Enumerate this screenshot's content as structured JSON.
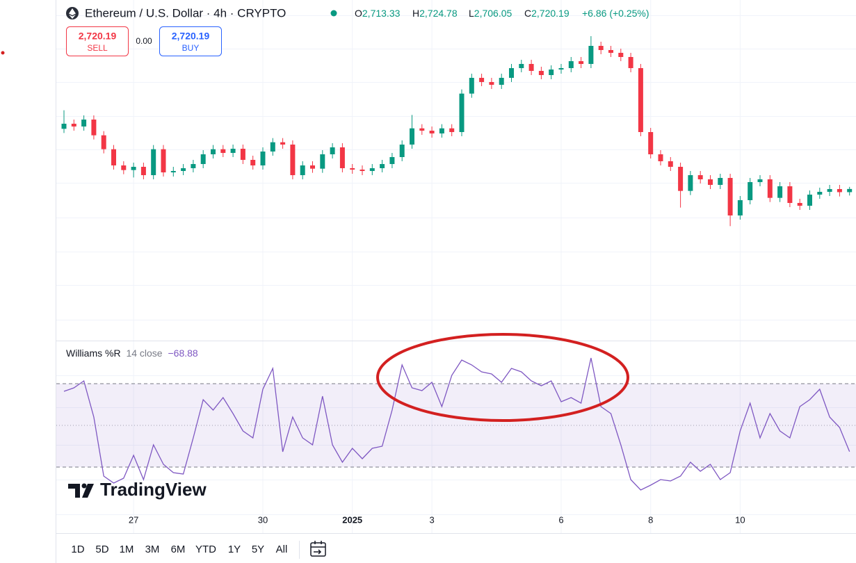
{
  "header": {
    "title": "Ethereum / U.S. Dollar · 4h · CRYPTO",
    "ohlc": [
      {
        "label": "O",
        "value": "2,713.33"
      },
      {
        "label": "H",
        "value": "2,724.78"
      },
      {
        "label": "L",
        "value": "2,706.05"
      },
      {
        "label": "C",
        "value": "2,720.19"
      }
    ],
    "change": "+6.86 (+0.25%)"
  },
  "trade": {
    "sell": {
      "price": "2,720.19",
      "label": "SELL"
    },
    "spread": "0.00",
    "buy": {
      "price": "2,720.19",
      "label": "BUY"
    }
  },
  "chart_data": [
    {
      "type": "candlestick",
      "up_color": "#089981",
      "down_color": "#f23645",
      "ylim": [
        2393,
        3128
      ],
      "categories": [
        null,
        null,
        null,
        null,
        null,
        null,
        null,
        "27",
        null,
        null,
        null,
        null,
        null,
        null,
        null,
        null,
        null,
        null,
        null,
        null,
        "30",
        null,
        null,
        null,
        null,
        null,
        null,
        null,
        null,
        "2025",
        null,
        null,
        null,
        null,
        null,
        null,
        null,
        "3",
        null,
        null,
        null,
        null,
        null,
        null,
        null,
        null,
        null,
        null,
        null,
        null,
        "6",
        null,
        null,
        null,
        null,
        null,
        null,
        null,
        null,
        "8",
        null,
        null,
        null,
        null,
        null,
        null,
        null,
        null,
        "10",
        null,
        null,
        null,
        null,
        null,
        null,
        null,
        null,
        null,
        null,
        null
      ],
      "open": [
        2850,
        2861,
        2855,
        2870,
        2836,
        2806,
        2771,
        2761,
        2768,
        2750,
        2806,
        2756,
        2759,
        2765,
        2774,
        2795,
        2806,
        2798,
        2807,
        2783,
        2771,
        2801,
        2821,
        2816,
        2750,
        2771,
        2764,
        2795,
        2810,
        2765,
        2762,
        2759,
        2765,
        2774,
        2789,
        2816,
        2851,
        2846,
        2840,
        2851,
        2843,
        2926,
        2960,
        2951,
        2945,
        2960,
        2981,
        2990,
        2975,
        2966,
        2978,
        2981,
        2996,
        2990,
        3029,
        3020,
        3014,
        3005,
        2981,
        2843,
        2795,
        2780,
        2768,
        2716,
        2750,
        2741,
        2729,
        2744,
        2663,
        2696,
        2735,
        2741,
        2701,
        2726,
        2690,
        2684,
        2708,
        2714,
        2720,
        2713.33
      ],
      "high": [
        2890,
        2870,
        2879,
        2879,
        2845,
        2815,
        2780,
        2777,
        2777,
        2815,
        2815,
        2768,
        2774,
        2783,
        2804,
        2815,
        2815,
        2816,
        2816,
        2792,
        2810,
        2830,
        2830,
        2825,
        2780,
        2780,
        2804,
        2819,
        2819,
        2774,
        2771,
        2774,
        2783,
        2798,
        2825,
        2880,
        2860,
        2855,
        2860,
        2860,
        2935,
        2969,
        2969,
        2960,
        2969,
        2990,
        2999,
        2999,
        2984,
        2987,
        2990,
        3005,
        3005,
        3050,
        3038,
        3029,
        3023,
        3014,
        2990,
        2852,
        2804,
        2789,
        2777,
        2759,
        2759,
        2750,
        2753,
        2753,
        2705,
        2744,
        2750,
        2750,
        2735,
        2735,
        2699,
        2717,
        2723,
        2729,
        2729,
        2724.78
      ],
      "low": [
        2841,
        2846,
        2846,
        2827,
        2797,
        2762,
        2752,
        2745,
        2741,
        2741,
        2747,
        2747,
        2750,
        2756,
        2765,
        2786,
        2789,
        2789,
        2774,
        2762,
        2762,
        2792,
        2807,
        2741,
        2741,
        2755,
        2755,
        2786,
        2756,
        2753,
        2750,
        2750,
        2756,
        2765,
        2780,
        2807,
        2837,
        2831,
        2831,
        2834,
        2834,
        2917,
        2942,
        2936,
        2936,
        2951,
        2972,
        2966,
        2957,
        2957,
        2969,
        2972,
        2981,
        2981,
        3011,
        3005,
        2996,
        2972,
        2834,
        2786,
        2771,
        2759,
        2680,
        2707,
        2732,
        2720,
        2720,
        2640,
        2654,
        2687,
        2726,
        2692,
        2692,
        2681,
        2675,
        2675,
        2699,
        2705,
        2704,
        2706.05
      ],
      "close": [
        2861,
        2855,
        2870,
        2836,
        2806,
        2771,
        2761,
        2768,
        2750,
        2806,
        2756,
        2759,
        2765,
        2774,
        2795,
        2806,
        2798,
        2807,
        2783,
        2771,
        2801,
        2821,
        2816,
        2750,
        2771,
        2764,
        2795,
        2810,
        2765,
        2762,
        2759,
        2765,
        2774,
        2789,
        2816,
        2851,
        2846,
        2840,
        2851,
        2843,
        2926,
        2960,
        2951,
        2945,
        2960,
        2981,
        2990,
        2975,
        2966,
        2978,
        2981,
        2996,
        2990,
        3029,
        3020,
        3014,
        3005,
        2981,
        2843,
        2795,
        2780,
        2768,
        2716,
        2750,
        2741,
        2729,
        2744,
        2663,
        2696,
        2735,
        2741,
        2701,
        2726,
        2690,
        2684,
        2708,
        2714,
        2720,
        2713.33,
        2720.19
      ]
    },
    {
      "type": "line",
      "title": "Williams %R",
      "params": "14 close",
      "last_label": "−68.88",
      "color": "#7e57c2",
      "ylim": [
        -100,
        0
      ],
      "bands": [
        -20,
        -80
      ],
      "midline": -50,
      "values": [
        -25.5,
        -23,
        -18,
        -44,
        -86.5,
        -91.5,
        -88,
        -71.5,
        -89,
        -64,
        -78,
        -84,
        -85,
        -59,
        -31.5,
        -39,
        -30,
        -41.5,
        -54,
        -59,
        -24,
        -9,
        -69,
        -44,
        -59,
        -64,
        -29,
        -64,
        -76.5,
        -66.5,
        -74,
        -66.5,
        -65,
        -39,
        -6.5,
        -23,
        -25,
        -19,
        -36.5,
        -14,
        -3,
        -6.5,
        -11.5,
        -13,
        -19,
        -9,
        -11.5,
        -18,
        -21.5,
        -18,
        -33,
        -30,
        -34,
        -1.5,
        -36.5,
        -41.5,
        -64,
        -89,
        -96.5,
        -93,
        -89,
        -90,
        -86.5,
        -76.5,
        -83,
        -78,
        -89,
        -84,
        -54,
        -34,
        -59,
        -41.5,
        -54,
        -59,
        -36.5,
        -31.5,
        -24,
        -44,
        -51.5,
        -68.88
      ]
    }
  ],
  "logo": "TradingView",
  "timeframes": [
    "1D",
    "5D",
    "1M",
    "3M",
    "6M",
    "YTD",
    "1Y",
    "5Y",
    "All"
  ]
}
